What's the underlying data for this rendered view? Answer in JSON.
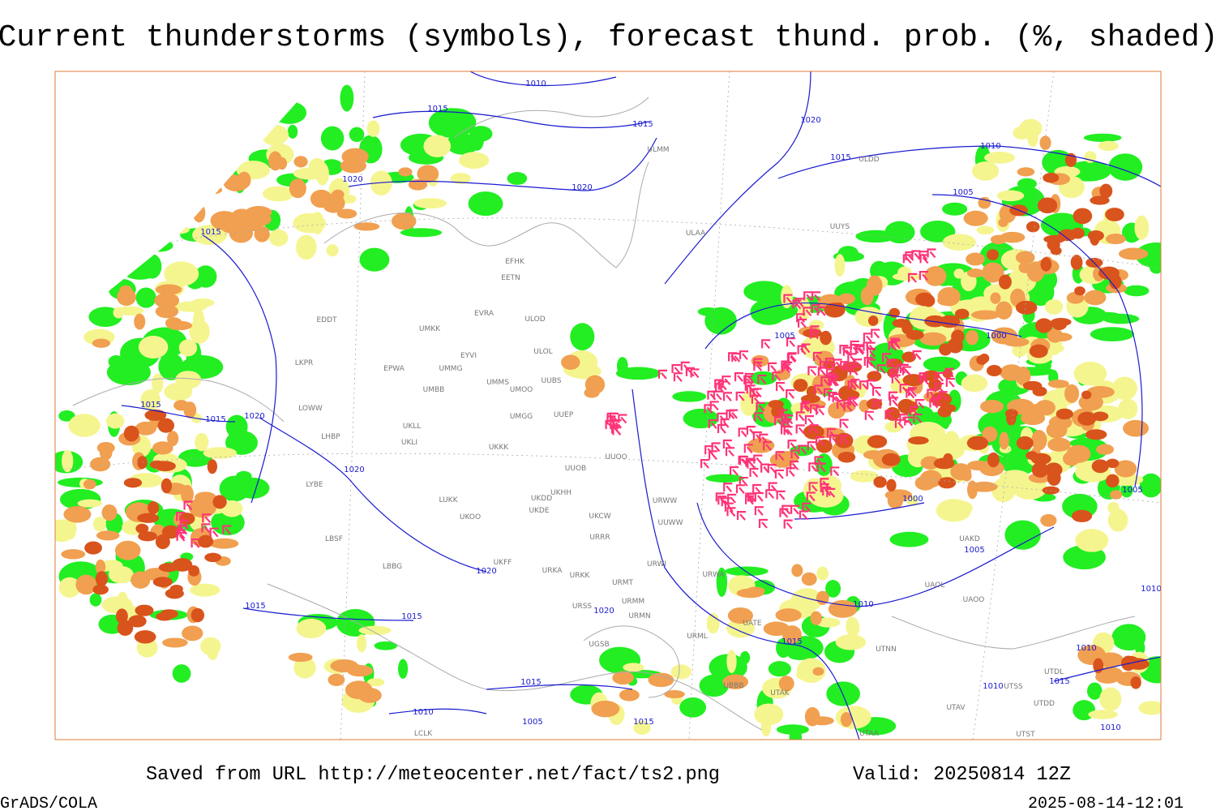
{
  "header": {
    "title": "Current thunderstorms (symbols), forecast thund. prob. (%, shaded)"
  },
  "map": {
    "isobar_labels": [
      "1010",
      "1015",
      "1015",
      "1020",
      "1020",
      "1020",
      "1015",
      "1010",
      "1005",
      "1015",
      "1005",
      "1000",
      "1015",
      "1015",
      "1020",
      "1020",
      "1000",
      "1005",
      "1005",
      "1020",
      "1010",
      "1015",
      "1015",
      "1020",
      "1015",
      "1015",
      "1010",
      "1005",
      "1015",
      "1010",
      "1010",
      "1010",
      "1015",
      "1010"
    ],
    "station_labels": [
      "ULMM",
      "ULDD",
      "ULAA",
      "UUYS",
      "EFHK",
      "EETN",
      "ULOD",
      "ULOL",
      "UUBS",
      "UUEP",
      "UMMS",
      "UMOO",
      "UMGG",
      "UUOB",
      "UUOO",
      "UKHH",
      "UKDD",
      "UKDE",
      "UKCW",
      "UKOO",
      "LUKK",
      "UKLL",
      "UKLI",
      "UKKK",
      "UMBB",
      "EPWA",
      "UMMG",
      "EYVI",
      "UMKK",
      "EVRA",
      "EDDT",
      "LKPR",
      "LOWW",
      "LHBP",
      "LYBE",
      "LBSF",
      "LBBG",
      "UKFF",
      "URKA",
      "URKK",
      "URMT",
      "URMM",
      "URMN",
      "URSS",
      "URRR",
      "URWI",
      "URWA",
      "UATE",
      "UGSB",
      "URML",
      "UTNN",
      "UTAK",
      "UTAA",
      "UBBB",
      "UAOO",
      "UAOL",
      "UAKD",
      "UUWW",
      "URWW",
      "UTSS",
      "UTAV",
      "UTST",
      "UTDD",
      "UTDL",
      "LCLK"
    ]
  },
  "footer": {
    "source": "Saved from URL http://meteocenter.net/fact/ts2.png",
    "valid": "Valid: 20250814 12Z",
    "software": "GrADS/COLA",
    "timestamp": "2025-08-14-12:01"
  }
}
